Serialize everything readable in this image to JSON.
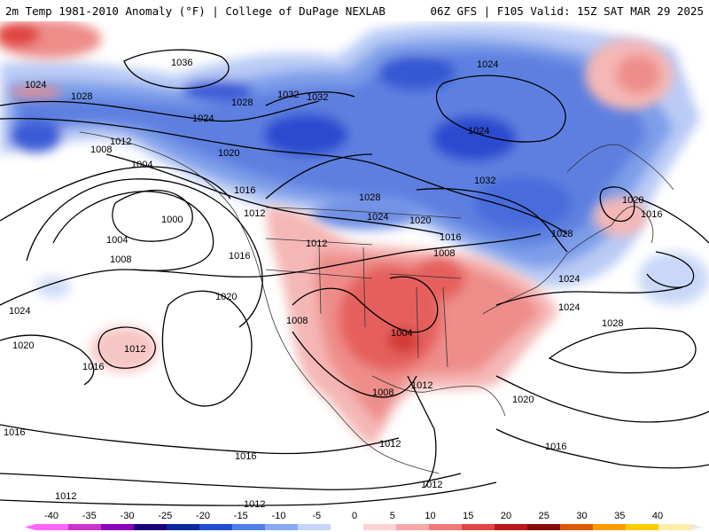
{
  "header": {
    "left_title": "2m Temp 1981-2010 Anomaly (°F) | College of DuPage NEXLAB",
    "right_title": "06Z GFS | F105 Valid: 15Z SAT MAR 29 2025"
  },
  "colors": {
    "strong_cold": "#1f3fcf",
    "cold": "#4f78e3",
    "mild_cold": "#a9c0f2",
    "mild_warm": "#f6c2c0",
    "warm": "#f08a86",
    "strong_warm": "#e0453f",
    "isobar": "#000000"
  },
  "colorbar": {
    "ticks": [
      "-40",
      "-35",
      "-30",
      "-25",
      "-20",
      "-15",
      "-10",
      "-5",
      "0",
      "5",
      "10",
      "15",
      "20",
      "25",
      "30",
      "35",
      "40"
    ],
    "colors": [
      "#ff66ff",
      "#cc33cc",
      "#8a00b8",
      "#1a007a",
      "#0a2a9e",
      "#1f4fcf",
      "#4f7fe8",
      "#88aaf2",
      "#c6d6fa",
      "#ffffff",
      "#fbd3d3",
      "#f7a8a8",
      "#f07a7a",
      "#e04545",
      "#b81a1a",
      "#8a0a0a",
      "#d95a00",
      "#ff9900",
      "#ffcc00",
      "#ffeeaa"
    ]
  },
  "isobar_labels": [
    {
      "id": "iso-1036",
      "text": "1036"
    },
    {
      "id": "iso-1024-nw",
      "text": "1024"
    },
    {
      "id": "iso-1028-nw",
      "text": "1028"
    },
    {
      "id": "iso-1024-ak",
      "text": "1024"
    },
    {
      "id": "iso-1028-ak",
      "text": "1028"
    },
    {
      "id": "iso-1032-a",
      "text": "1032"
    },
    {
      "id": "iso-1032-b",
      "text": "1032"
    },
    {
      "id": "iso-1024-hud",
      "text": "1024"
    },
    {
      "id": "iso-1024-can",
      "text": "1024"
    },
    {
      "id": "iso-1032-can",
      "text": "1032"
    },
    {
      "id": "iso-1028-can",
      "text": "1028"
    },
    {
      "id": "iso-1024-pl",
      "text": "1024"
    },
    {
      "id": "iso-1020-pl",
      "text": "1020"
    },
    {
      "id": "iso-1028-ne",
      "text": "1028"
    },
    {
      "id": "iso-1012-nepac",
      "text": "1012"
    },
    {
      "id": "iso-1008-nepac",
      "text": "1008"
    },
    {
      "id": "iso-1004-gulf",
      "text": "1004"
    },
    {
      "id": "iso-1020-bc",
      "text": "1020"
    },
    {
      "id": "iso-1016-bc",
      "text": "1016"
    },
    {
      "id": "iso-1000",
      "text": "1000"
    },
    {
      "id": "iso-1004-low",
      "text": "1004"
    },
    {
      "id": "iso-1008-low",
      "text": "1008"
    },
    {
      "id": "iso-1012-wa",
      "text": "1012"
    },
    {
      "id": "iso-1012-mt",
      "text": "1012"
    },
    {
      "id": "iso-1016-gl",
      "text": "1016"
    },
    {
      "id": "iso-1008-mw",
      "text": "1008"
    },
    {
      "id": "iso-1016-or",
      "text": "1016"
    },
    {
      "id": "iso-1020-pac",
      "text": "1020"
    },
    {
      "id": "iso-1024-pac",
      "text": "1024"
    },
    {
      "id": "iso-1020-pac2",
      "text": "1020"
    },
    {
      "id": "iso-1012-pac",
      "text": "1012"
    },
    {
      "id": "iso-1016-pac",
      "text": "1016"
    },
    {
      "id": "iso-1008-sw",
      "text": "1008"
    },
    {
      "id": "iso-1004-tx",
      "text": "1004"
    },
    {
      "id": "iso-1008-tx",
      "text": "1008"
    },
    {
      "id": "iso-1012-gulf",
      "text": "1012"
    },
    {
      "id": "iso-1024-ma",
      "text": "1024"
    },
    {
      "id": "iso-1024-atl",
      "text": "1024"
    },
    {
      "id": "iso-1028-atl",
      "text": "1028"
    },
    {
      "id": "iso-1020-fl",
      "text": "1020"
    },
    {
      "id": "iso-1020-nf",
      "text": "1020"
    },
    {
      "id": "iso-1016-nf",
      "text": "1016"
    },
    {
      "id": "iso-1016-car",
      "text": "1016"
    },
    {
      "id": "iso-1016-w",
      "text": "1016"
    },
    {
      "id": "iso-1016-s",
      "text": "1016"
    },
    {
      "id": "iso-1012-mx",
      "text": "1012"
    },
    {
      "id": "iso-1012-ca",
      "text": "1012"
    },
    {
      "id": "iso-1012-sw",
      "text": "1012"
    },
    {
      "id": "iso-1012-s",
      "text": "1012"
    }
  ]
}
